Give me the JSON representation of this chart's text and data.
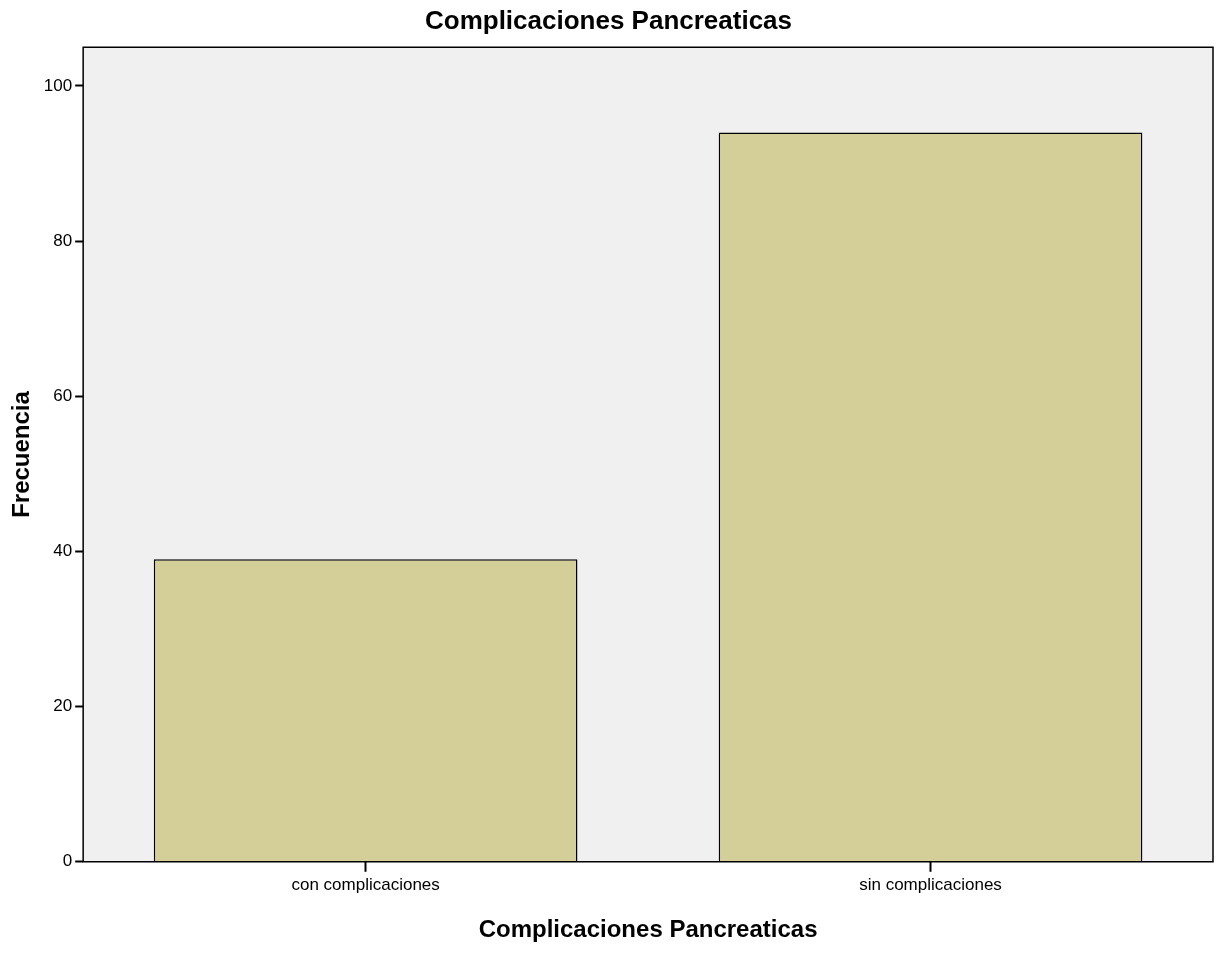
{
  "chart_data": {
    "type": "bar",
    "title": "Complicaciones Pancreaticas",
    "xlabel": "Complicaciones Pancreaticas",
    "ylabel": "Frecuencia",
    "categories": [
      "con complicaciones",
      "sin complicaciones"
    ],
    "values": [
      39,
      94
    ],
    "color": "#d4ce98",
    "ylim": [
      0,
      105
    ],
    "yticks": [
      0,
      20,
      40,
      60,
      80,
      100
    ],
    "grid": false,
    "legend": false
  }
}
